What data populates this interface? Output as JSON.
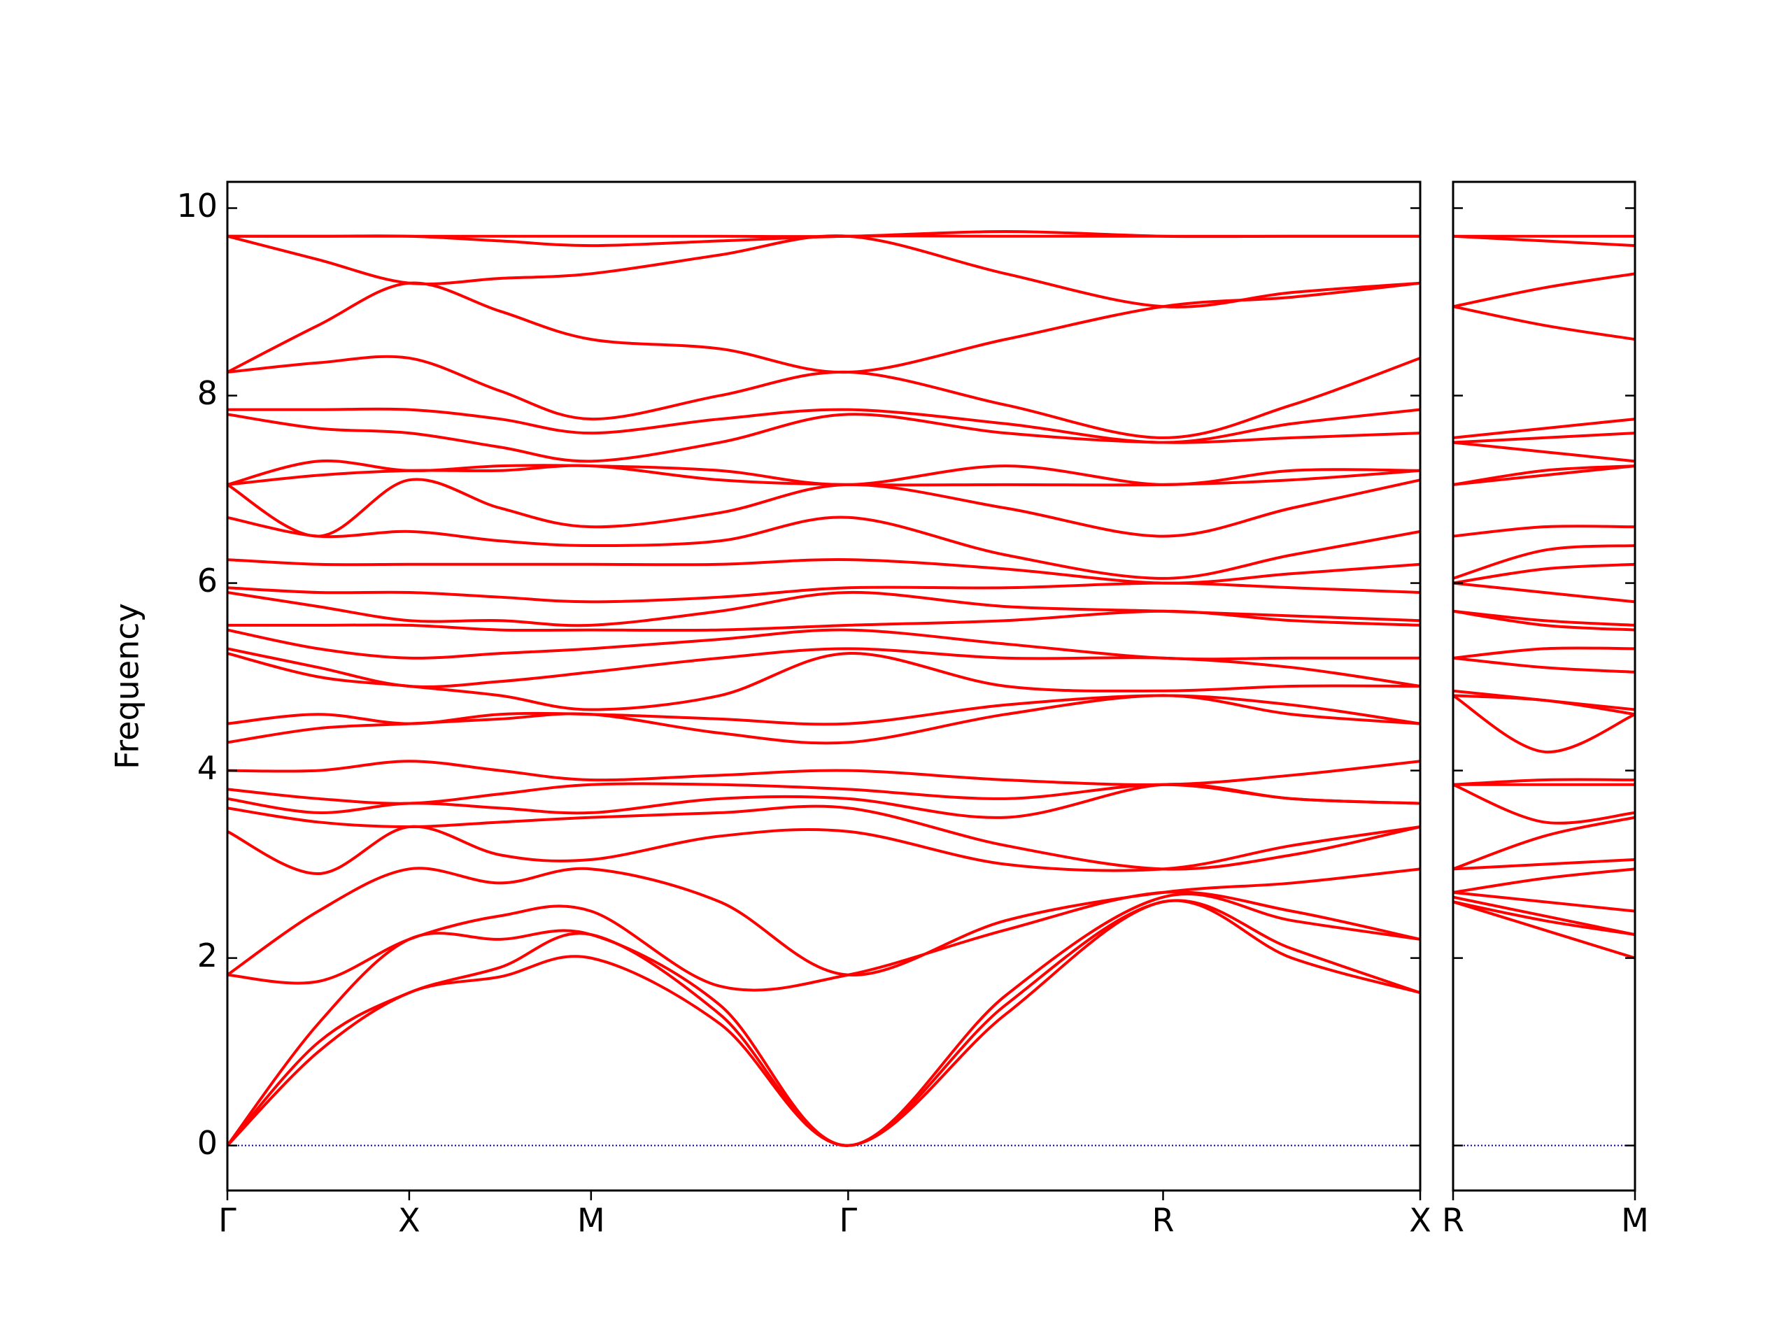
{
  "chart_data": [
    {
      "type": "line",
      "ylabel": "Frequency",
      "color": "#ff0000",
      "xlim": [
        0,
        3.28
      ],
      "ylim": [
        -0.48,
        10.28
      ],
      "xticks": [
        {
          "value": 0,
          "label": "Γ"
        },
        {
          "value": 0.5,
          "label": "X"
        },
        {
          "value": 1.0,
          "label": "M"
        },
        {
          "value": 1.707,
          "label": "Γ"
        },
        {
          "value": 2.573,
          "label": "R"
        },
        {
          "value": 3.28,
          "label": "X"
        }
      ],
      "yticks": [
        0,
        2,
        4,
        6,
        8,
        10
      ],
      "ytick_labels": true,
      "zero_line": true,
      "zero_line_color": "#0000cc",
      "x": [
        0,
        0.25,
        0.5,
        0.75,
        1.0,
        1.354,
        1.707,
        2.14,
        2.573,
        2.927,
        3.28
      ],
      "series": [
        {
          "values": [
            0,
            1.0,
            1.63,
            1.8,
            2.0,
            1.3,
            0,
            1.4,
            2.6,
            2.0,
            1.63
          ]
        },
        {
          "values": [
            0,
            1.1,
            1.63,
            1.9,
            2.25,
            1.4,
            0,
            1.5,
            2.6,
            2.1,
            1.63
          ]
        },
        {
          "values": [
            0,
            1.3,
            2.2,
            2.2,
            2.25,
            1.5,
            0,
            1.6,
            2.65,
            2.4,
            2.2
          ]
        },
        {
          "values": [
            1.82,
            1.75,
            2.2,
            2.45,
            2.5,
            1.7,
            1.82,
            2.3,
            2.7,
            2.5,
            2.2
          ]
        },
        {
          "values": [
            1.82,
            2.5,
            2.95,
            2.8,
            2.95,
            2.6,
            1.82,
            2.4,
            2.7,
            2.8,
            2.95
          ]
        },
        {
          "values": [
            3.35,
            2.9,
            3.4,
            3.1,
            3.05,
            3.3,
            3.35,
            3.0,
            2.95,
            3.2,
            3.4
          ]
        },
        {
          "values": [
            3.6,
            3.45,
            3.4,
            3.45,
            3.5,
            3.55,
            3.6,
            3.2,
            2.95,
            3.1,
            3.4
          ]
        },
        {
          "values": [
            3.7,
            3.55,
            3.65,
            3.6,
            3.55,
            3.7,
            3.7,
            3.5,
            3.85,
            3.7,
            3.65
          ]
        },
        {
          "values": [
            3.8,
            3.7,
            3.65,
            3.75,
            3.85,
            3.85,
            3.8,
            3.7,
            3.85,
            3.7,
            3.65
          ]
        },
        {
          "values": [
            4.0,
            4.0,
            4.1,
            4.0,
            3.9,
            3.95,
            4.0,
            3.9,
            3.85,
            3.95,
            4.1
          ]
        },
        {
          "values": [
            4.3,
            4.45,
            4.5,
            4.55,
            4.6,
            4.4,
            4.3,
            4.6,
            4.8,
            4.6,
            4.5
          ]
        },
        {
          "values": [
            4.5,
            4.6,
            4.5,
            4.6,
            4.6,
            4.55,
            4.5,
            4.7,
            4.8,
            4.7,
            4.5
          ]
        },
        {
          "values": [
            5.25,
            5.0,
            4.9,
            4.8,
            4.65,
            4.8,
            5.25,
            4.9,
            4.85,
            4.9,
            4.9
          ]
        },
        {
          "values": [
            5.3,
            5.1,
            4.9,
            4.95,
            5.05,
            5.2,
            5.3,
            5.2,
            5.2,
            5.1,
            4.9
          ]
        },
        {
          "values": [
            5.5,
            5.3,
            5.2,
            5.25,
            5.3,
            5.4,
            5.5,
            5.35,
            5.2,
            5.2,
            5.2
          ]
        },
        {
          "values": [
            5.55,
            5.55,
            5.55,
            5.5,
            5.5,
            5.5,
            5.55,
            5.6,
            5.7,
            5.6,
            5.55
          ]
        },
        {
          "values": [
            5.9,
            5.75,
            5.6,
            5.6,
            5.55,
            5.7,
            5.9,
            5.75,
            5.7,
            5.65,
            5.6
          ]
        },
        {
          "values": [
            5.95,
            5.9,
            5.9,
            5.85,
            5.8,
            5.85,
            5.95,
            5.95,
            6.0,
            5.95,
            5.9
          ]
        },
        {
          "values": [
            6.25,
            6.2,
            6.2,
            6.2,
            6.2,
            6.2,
            6.25,
            6.15,
            6.0,
            6.1,
            6.2
          ]
        },
        {
          "values": [
            6.7,
            6.5,
            6.55,
            6.45,
            6.4,
            6.45,
            6.7,
            6.3,
            6.05,
            6.3,
            6.55
          ]
        },
        {
          "values": [
            7.05,
            6.5,
            7.1,
            6.8,
            6.6,
            6.75,
            7.05,
            6.8,
            6.5,
            6.8,
            7.1
          ]
        },
        {
          "values": [
            7.05,
            7.15,
            7.2,
            7.2,
            7.25,
            7.1,
            7.05,
            7.05,
            7.05,
            7.1,
            7.2
          ]
        },
        {
          "values": [
            7.05,
            7.3,
            7.2,
            7.25,
            7.25,
            7.2,
            7.05,
            7.25,
            7.05,
            7.2,
            7.2
          ]
        },
        {
          "values": [
            7.8,
            7.65,
            7.6,
            7.45,
            7.3,
            7.5,
            7.8,
            7.6,
            7.5,
            7.55,
            7.6
          ]
        },
        {
          "values": [
            7.85,
            7.85,
            7.85,
            7.75,
            7.6,
            7.75,
            7.85,
            7.7,
            7.5,
            7.7,
            7.85
          ]
        },
        {
          "values": [
            8.25,
            8.35,
            8.4,
            8.05,
            7.75,
            8.0,
            8.25,
            7.9,
            7.55,
            7.9,
            8.4
          ]
        },
        {
          "values": [
            8.25,
            8.75,
            9.2,
            8.9,
            8.6,
            8.5,
            8.25,
            8.6,
            8.95,
            9.05,
            9.2
          ]
        },
        {
          "values": [
            9.7,
            9.45,
            9.2,
            9.25,
            9.3,
            9.5,
            9.7,
            9.3,
            8.95,
            9.1,
            9.2
          ]
        },
        {
          "values": [
            9.7,
            9.7,
            9.7,
            9.65,
            9.6,
            9.65,
            9.7,
            9.7,
            9.7,
            9.7,
            9.7
          ]
        },
        {
          "values": [
            9.7,
            9.7,
            9.7,
            9.7,
            9.7,
            9.7,
            9.7,
            9.75,
            9.7,
            9.7,
            9.7
          ]
        }
      ]
    },
    {
      "type": "line",
      "color": "#ff0000",
      "xlim": [
        0,
        0.5
      ],
      "ylim": [
        -0.48,
        10.28
      ],
      "xticks": [
        {
          "value": 0,
          "label": "R"
        },
        {
          "value": 0.5,
          "label": "M"
        }
      ],
      "yticks": [
        0,
        2,
        4,
        6,
        8,
        10
      ],
      "ytick_labels": false,
      "zero_line": true,
      "zero_line_color": "#0000cc",
      "x": [
        0,
        0.25,
        0.5
      ],
      "series": [
        {
          "values": [
            2.6,
            2.3,
            2.0
          ]
        },
        {
          "values": [
            2.6,
            2.4,
            2.25
          ]
        },
        {
          "values": [
            2.65,
            2.45,
            2.25
          ]
        },
        {
          "values": [
            2.7,
            2.6,
            2.5
          ]
        },
        {
          "values": [
            2.7,
            2.85,
            2.95
          ]
        },
        {
          "values": [
            2.95,
            3.0,
            3.05
          ]
        },
        {
          "values": [
            2.95,
            3.3,
            3.5
          ]
        },
        {
          "values": [
            3.85,
            3.45,
            3.55
          ]
        },
        {
          "values": [
            3.85,
            3.85,
            3.85
          ]
        },
        {
          "values": [
            3.85,
            3.9,
            3.9
          ]
        },
        {
          "values": [
            4.8,
            4.2,
            4.6
          ]
        },
        {
          "values": [
            4.8,
            4.75,
            4.6
          ]
        },
        {
          "values": [
            4.85,
            4.75,
            4.65
          ]
        },
        {
          "values": [
            5.2,
            5.1,
            5.05
          ]
        },
        {
          "values": [
            5.2,
            5.3,
            5.3
          ]
        },
        {
          "values": [
            5.7,
            5.55,
            5.5
          ]
        },
        {
          "values": [
            5.7,
            5.6,
            5.55
          ]
        },
        {
          "values": [
            6.0,
            5.9,
            5.8
          ]
        },
        {
          "values": [
            6.0,
            6.15,
            6.2
          ]
        },
        {
          "values": [
            6.05,
            6.35,
            6.4
          ]
        },
        {
          "values": [
            6.5,
            6.6,
            6.6
          ]
        },
        {
          "values": [
            7.05,
            7.15,
            7.25
          ]
        },
        {
          "values": [
            7.05,
            7.2,
            7.25
          ]
        },
        {
          "values": [
            7.5,
            7.4,
            7.3
          ]
        },
        {
          "values": [
            7.5,
            7.55,
            7.6
          ]
        },
        {
          "values": [
            7.55,
            7.65,
            7.75
          ]
        },
        {
          "values": [
            8.95,
            8.75,
            8.6
          ]
        },
        {
          "values": [
            8.95,
            9.15,
            9.3
          ]
        },
        {
          "values": [
            9.7,
            9.65,
            9.6
          ]
        },
        {
          "values": [
            9.7,
            9.7,
            9.7
          ]
        }
      ]
    }
  ]
}
